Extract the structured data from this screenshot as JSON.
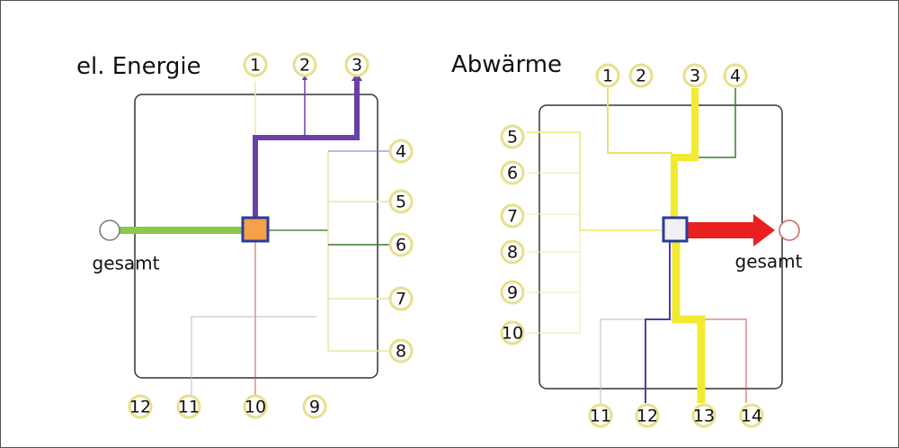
{
  "diagrams": [
    {
      "title": "el. Energie",
      "total_label": "gesamt",
      "nodes": [
        "1",
        "2",
        "3",
        "4",
        "5",
        "6",
        "7",
        "8",
        "9",
        "10",
        "11",
        "12"
      ]
    },
    {
      "title": "Abwärme",
      "total_label": "gesamt",
      "nodes": [
        "1",
        "2",
        "3",
        "4",
        "5",
        "6",
        "7",
        "8",
        "9",
        "10",
        "11",
        "12",
        "13",
        "14"
      ]
    }
  ]
}
